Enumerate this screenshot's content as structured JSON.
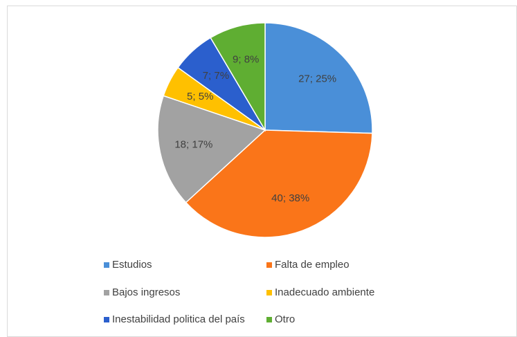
{
  "chart_data": {
    "type": "pie",
    "categories": [
      "Estudios",
      "Falta de empleo",
      "Bajos ingresos",
      "Inadecuado ambiente",
      "Inestabilidad politica del país",
      "Otro"
    ],
    "values": [
      27,
      40,
      18,
      5,
      7,
      9
    ],
    "value_labels": [
      "27; 25%",
      "40; 38%",
      "18; 17%",
      "5; 5%",
      "7; 7%",
      "9; 8%"
    ],
    "colors": [
      "#4a8fd8",
      "#fa7519",
      "#a2a2a2",
      "#ffc000",
      "#2b5fcd",
      "#5fae32"
    ],
    "legend": "bottom"
  }
}
